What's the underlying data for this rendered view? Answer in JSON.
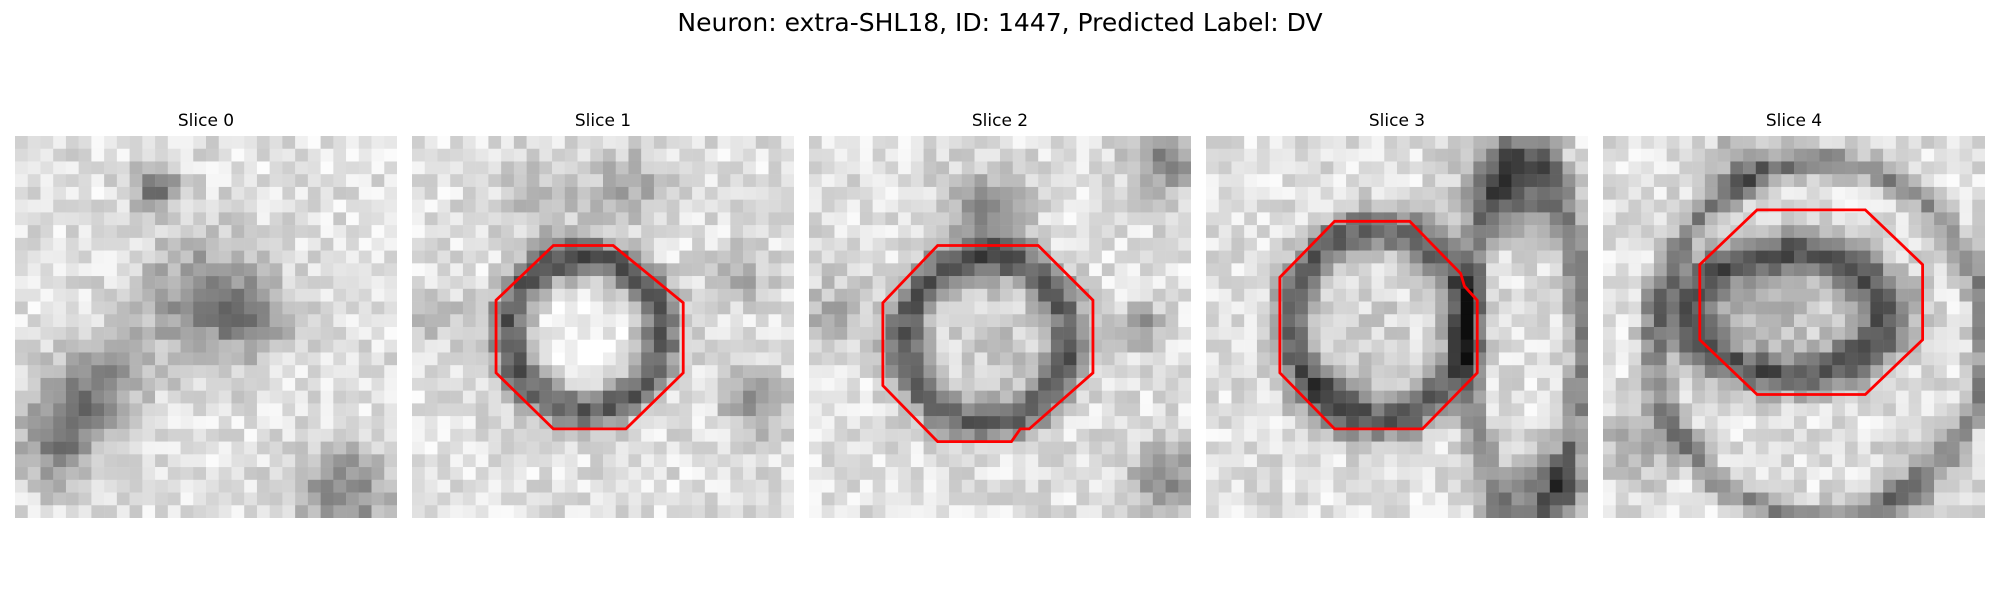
{
  "figure": {
    "title": "Neuron: extra-SHL18, ID: 1447, Predicted Label: DV"
  },
  "colors": {
    "contour": "#ff0000",
    "colormap": "gray"
  },
  "panels": [
    {
      "title": "Slice 0",
      "has_contour": false
    },
    {
      "title": "Slice 1",
      "has_contour": true
    },
    {
      "title": "Slice 2",
      "has_contour": true
    },
    {
      "title": "Slice 3",
      "has_contour": true
    },
    {
      "title": "Slice 4",
      "has_contour": true
    }
  ]
}
